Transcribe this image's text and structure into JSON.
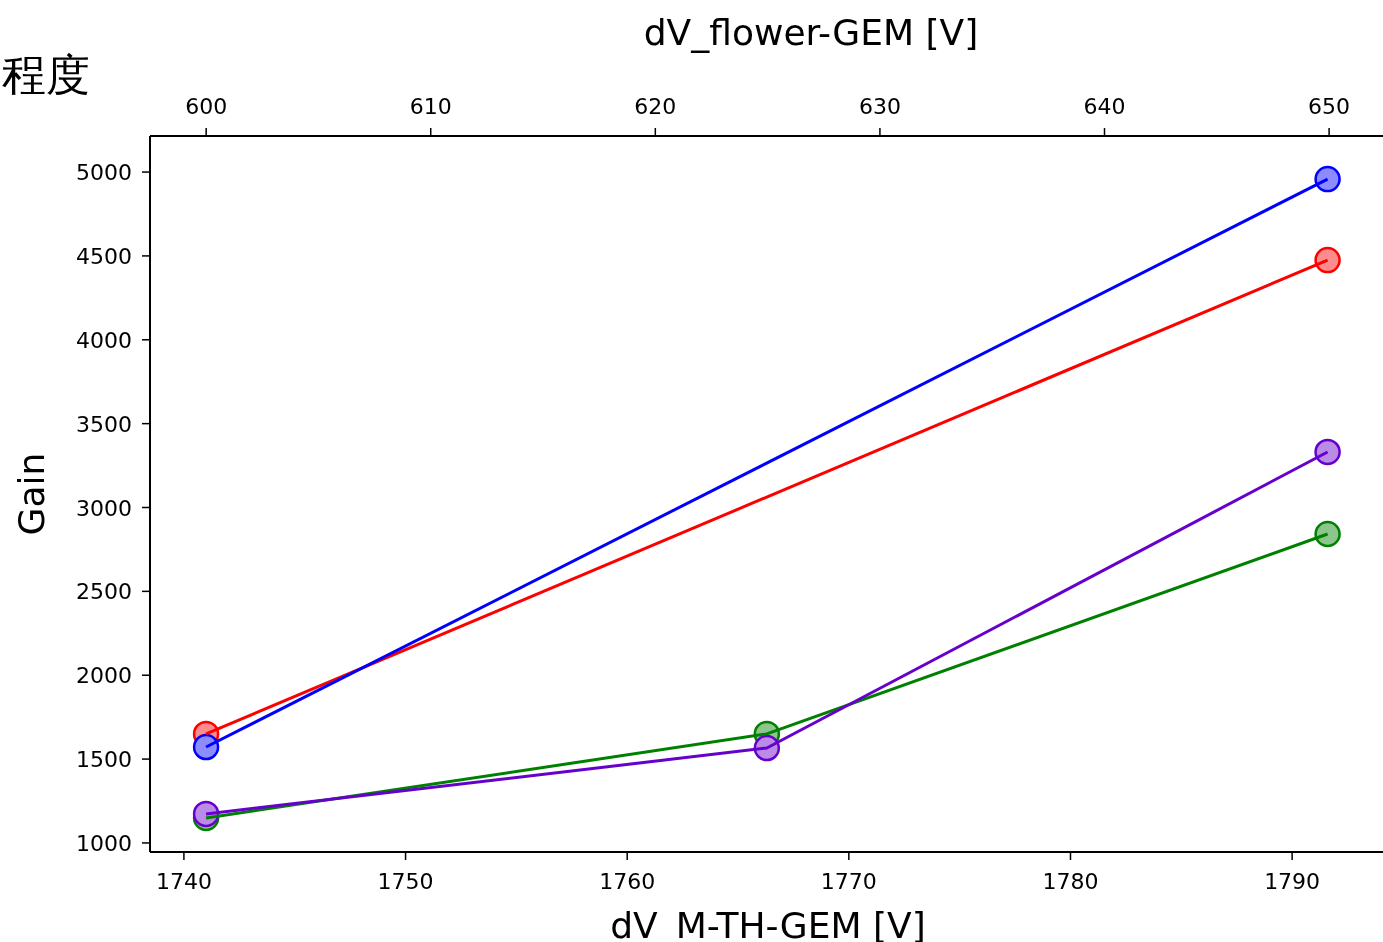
{
  "chart_data": {
    "type": "line",
    "xlabel": "dV_M-TH-GEM [V]",
    "x2label": "dV_flower-GEM [V]",
    "ylabel": "Gain",
    "annotations": [
      "程度"
    ],
    "xlim": [
      1738.47,
      1794.1
    ],
    "xticks": [
      1740,
      1750,
      1760,
      1770,
      1780,
      1790
    ],
    "x2lim": [
      597.5,
      652.4
    ],
    "x2ticks": [
      600,
      610,
      620,
      630,
      640,
      650
    ],
    "ylim": [
      946,
      5215
    ],
    "yticks": [
      1000,
      1500,
      2000,
      2500,
      3000,
      3500,
      4000,
      4500,
      5000
    ],
    "marker": "circle",
    "line_style": "solid",
    "grid": false,
    "series": [
      {
        "color": "#ff0000",
        "x": [
          1741,
          1791.6
        ],
        "values": [
          1650,
          4475
        ]
      },
      {
        "color": "#0000ff",
        "x": [
          1741,
          1791.6
        ],
        "values": [
          1572,
          4958
        ]
      },
      {
        "color": "#008000",
        "x": [
          1741,
          1766.3,
          1791.6
        ],
        "values": [
          1149,
          1650,
          2842
        ]
      },
      {
        "color": "#6600cc",
        "x": [
          1741,
          1766.3,
          1791.6
        ],
        "values": [
          1173,
          1566,
          3331
        ]
      }
    ]
  }
}
